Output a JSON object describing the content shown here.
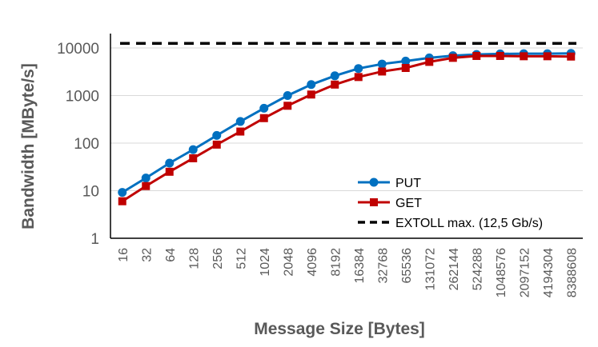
{
  "chart_data": {
    "type": "line",
    "xlabel": "Message Size [Bytes]",
    "ylabel": "Bandwidth [MByte/s]",
    "yscale": "log",
    "ylim": [
      1,
      10000
    ],
    "yticks": [
      "1",
      "10",
      "100",
      "1000",
      "10000"
    ],
    "grid": true,
    "legend": "inside-right",
    "categories": [
      "16",
      "32",
      "64",
      "128",
      "256",
      "512",
      "1024",
      "2048",
      "4096",
      "8192",
      "16384",
      "32768",
      "65536",
      "131072",
      "262144",
      "524288",
      "1048576",
      "2097152",
      "4194304",
      "8388608"
    ],
    "series": [
      {
        "name": "PUT",
        "color": "#0070C0",
        "marker": "circle",
        "values": [
          9.2,
          18.5,
          38,
          73,
          145,
          285,
          540,
          1000,
          1700,
          2600,
          3700,
          4600,
          5300,
          6200,
          6900,
          7300,
          7500,
          7600,
          7600,
          7700
        ]
      },
      {
        "name": "GET",
        "color": "#C00000",
        "marker": "square",
        "values": [
          6,
          12.5,
          25,
          48,
          93,
          175,
          335,
          610,
          1050,
          1700,
          2450,
          3200,
          3800,
          5100,
          6200,
          6800,
          6800,
          6700,
          6700,
          6600
        ]
      },
      {
        "name": "EXTOLL max. (12,5 Gb/s)",
        "color": "#000000",
        "style": "dashed",
        "constant": 12500
      }
    ]
  }
}
